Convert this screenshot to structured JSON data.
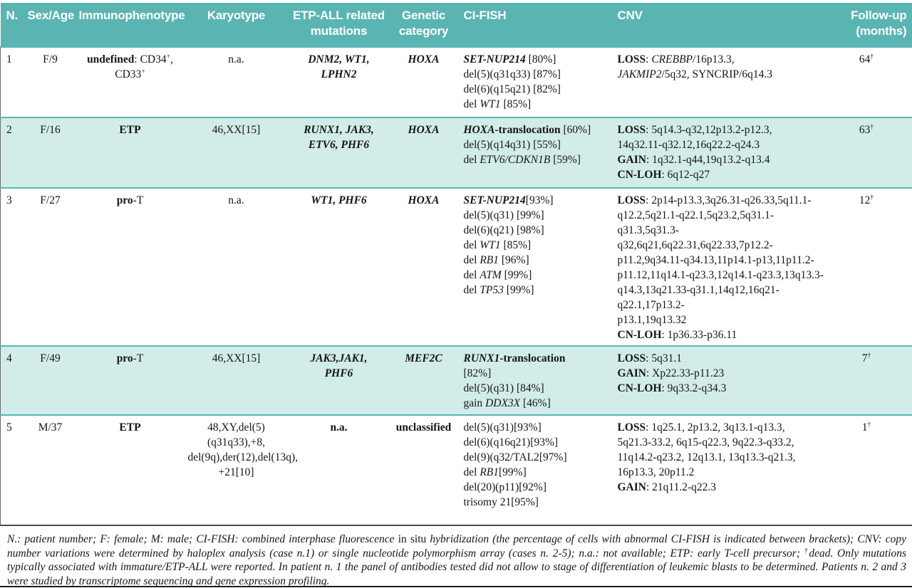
{
  "colors": {
    "header_bg": "#5ab5b2",
    "row_alt_bg": "#d2ecea",
    "rule_dark": "#4a4a4a",
    "text": "#151515"
  },
  "table": {
    "columns": [
      {
        "label": "N."
      },
      {
        "label": "Sex/Age"
      },
      {
        "label": "Immunophenotype"
      },
      {
        "label": "Karyotype"
      },
      {
        "label": "ETP-ALL related mutations"
      },
      {
        "label": "Genetic category"
      },
      {
        "label": "CI-FISH"
      },
      {
        "label": "CNV"
      },
      {
        "label": "Follow-up (months)"
      }
    ],
    "rows": [
      {
        "cells": [
          [
            [
              {
                "t": "1"
              }
            ]
          ],
          [
            [
              {
                "t": "F/9"
              }
            ]
          ],
          [
            [
              {
                "t": "undefined",
                "s": "b"
              },
              {
                "t": ": CD34"
              },
              {
                "t": "+",
                "s": "p"
              },
              {
                "t": ","
              }
            ],
            [
              {
                "t": "CD33"
              },
              {
                "t": "+",
                "s": "p"
              }
            ]
          ],
          [
            [
              {
                "t": "n.a."
              }
            ]
          ],
          [
            [
              {
                "t": "DNM2, WT1,",
                "s": "bi"
              }
            ],
            [
              {
                "t": "LPHN2",
                "s": "bi"
              }
            ]
          ],
          [
            [
              {
                "t": "HOXA",
                "s": "bi"
              }
            ]
          ],
          [
            [
              {
                "t": "SET-NUP214",
                "s": "bi"
              },
              {
                "t": " [80%]"
              }
            ],
            [
              {
                "t": "del(5)(q31q33) [87%]"
              }
            ],
            [
              {
                "t": "del(6)(q15q21) [82%]"
              }
            ],
            [
              {
                "t": "del "
              },
              {
                "t": "WT1",
                "s": "i"
              },
              {
                "t": " [85%]"
              }
            ]
          ],
          [
            [
              {
                "t": "LOSS",
                "s": "b"
              },
              {
                "t": ": "
              },
              {
                "t": "CREBBP",
                "s": "i"
              },
              {
                "t": "/16p13.3,"
              }
            ],
            [
              {
                "t": "JAKMIP2",
                "s": "i"
              },
              {
                "t": "/5q32, SYNCRIP/6q14.3"
              }
            ]
          ],
          [
            [
              {
                "t": "64"
              },
              {
                "t": "†",
                "s": "p"
              }
            ]
          ]
        ]
      },
      {
        "cells": [
          [
            [
              {
                "t": "2"
              }
            ]
          ],
          [
            [
              {
                "t": "F/16"
              }
            ]
          ],
          [
            [
              {
                "t": "ETP",
                "s": "b"
              }
            ]
          ],
          [
            [
              {
                "t": "46,XX[15]"
              }
            ]
          ],
          [
            [
              {
                "t": "RUNX1, JAK3,",
                "s": "bi"
              }
            ],
            [
              {
                "t": "ETV6, PHF6",
                "s": "bi"
              }
            ]
          ],
          [
            [
              {
                "t": "HOXA",
                "s": "bi"
              }
            ]
          ],
          [
            [
              {
                "t": "HOXA",
                "s": "bi"
              },
              {
                "t": "-translocation",
                "s": "b"
              },
              {
                "t": " [60%]"
              }
            ],
            [
              {
                "t": "del(5)(q14q31) [55%]"
              }
            ],
            [
              {
                "t": "del "
              },
              {
                "t": "ETV6/CDKN1B",
                "s": "i"
              },
              {
                "t": " [59%]"
              }
            ]
          ],
          [
            [
              {
                "t": "LOSS",
                "s": "b"
              },
              {
                "t": ": 5q14.3-q32,12p13.2-p12.3,"
              }
            ],
            [
              {
                "t": "14q32.11-q32.12,16q22.2-q24.3"
              }
            ],
            [
              {
                "t": "GAIN",
                "s": "b"
              },
              {
                "t": ": 1q32.1-q44,19q13.2-q13.4"
              }
            ],
            [
              {
                "t": "CN-LOH",
                "s": "b"
              },
              {
                "t": ": 6q12-q27"
              }
            ]
          ],
          [
            [
              {
                "t": "63"
              },
              {
                "t": "†",
                "s": "p"
              }
            ]
          ]
        ]
      },
      {
        "cells": [
          [
            [
              {
                "t": "3"
              }
            ]
          ],
          [
            [
              {
                "t": "F/27"
              }
            ]
          ],
          [
            [
              {
                "t": "pro",
                "s": "b"
              },
              {
                "t": "-T"
              }
            ]
          ],
          [
            [
              {
                "t": "n.a."
              }
            ]
          ],
          [
            [
              {
                "t": "WT1, PHF6",
                "s": "bi"
              }
            ]
          ],
          [
            [
              {
                "t": "HOXA",
                "s": "bi"
              }
            ]
          ],
          [
            [
              {
                "t": "SET-NUP214",
                "s": "bi"
              },
              {
                "t": "[93%]"
              }
            ],
            [
              {
                "t": "del(5)(q31) [99%]"
              }
            ],
            [
              {
                "t": "del(6)(q21) [98%]"
              }
            ],
            [
              {
                "t": "del "
              },
              {
                "t": "WT1",
                "s": "i"
              },
              {
                "t": " [85%]"
              }
            ],
            [
              {
                "t": "del "
              },
              {
                "t": "RB1",
                "s": "i"
              },
              {
                "t": " [96%]"
              }
            ],
            [
              {
                "t": "del "
              },
              {
                "t": "ATM",
                "s": "i"
              },
              {
                "t": " [99%]"
              }
            ],
            [
              {
                "t": "del "
              },
              {
                "t": "TP53",
                "s": "i"
              },
              {
                "t": " [99%]"
              }
            ]
          ],
          [
            [
              {
                "t": "LOSS",
                "s": "b"
              },
              {
                "t": ": 2p14-p13.3,3q26.31-q26.33,5q11.1-"
              }
            ],
            [
              {
                "t": "q12.2,5q21.1-q22.1,5q23.2,5q31.1-"
              }
            ],
            [
              {
                "t": "q31.3,5q31.3-q32,6q21,6q22.31,6q22.33,7p12.2-"
              }
            ],
            [
              {
                "t": "p11.2,9q34.11-q34.13,11p14.1-p13,11p11.2-"
              }
            ],
            [
              {
                "t": "p11.12,11q14.1-q23.3,12q14.1-q23.3,13q13.3-"
              }
            ],
            [
              {
                "t": "q14.3,13q21.33-q31.1,14q12,16q21-q22.1,17p13.2-"
              }
            ],
            [
              {
                "t": "p13.1,19q13.32"
              }
            ],
            [
              {
                "t": "CN-LOH",
                "s": "b"
              },
              {
                "t": ": 1p36.33-p36.11"
              }
            ]
          ],
          [
            [
              {
                "t": "12"
              },
              {
                "t": "†",
                "s": "p"
              }
            ]
          ]
        ]
      },
      {
        "cells": [
          [
            [
              {
                "t": "4"
              }
            ]
          ],
          [
            [
              {
                "t": "F/49"
              }
            ]
          ],
          [
            [
              {
                "t": "pro",
                "s": "b"
              },
              {
                "t": "-T"
              }
            ]
          ],
          [
            [
              {
                "t": "46,XX[15]"
              }
            ]
          ],
          [
            [
              {
                "t": "JAK3,JAK1,",
                "s": "bi"
              }
            ],
            [
              {
                "t": "PHF6",
                "s": "bi"
              }
            ]
          ],
          [
            [
              {
                "t": "MEF2C",
                "s": "bi"
              }
            ]
          ],
          [
            [
              {
                "t": "RUNX1",
                "s": "bi"
              },
              {
                "t": "-translocation",
                "s": "b"
              }
            ],
            [
              {
                "t": "[82%]"
              }
            ],
            [
              {
                "t": "del(5)(q31) [84%]"
              }
            ],
            [
              {
                "t": "gain "
              },
              {
                "t": "DDX3X",
                "s": "i"
              },
              {
                "t": " [46%]"
              }
            ]
          ],
          [
            [
              {
                "t": "LOSS",
                "s": "b"
              },
              {
                "t": ": 5q31.1"
              }
            ],
            [
              {
                "t": "GAIN",
                "s": "b"
              },
              {
                "t": ": Xp22.33-p11.23"
              }
            ],
            [
              {
                "t": "CN-LOH",
                "s": "b"
              },
              {
                "t": ": 9q33.2-q34.3"
              }
            ]
          ],
          [
            [
              {
                "t": "7"
              },
              {
                "t": "†",
                "s": "p"
              }
            ]
          ]
        ]
      },
      {
        "cells": [
          [
            [
              {
                "t": "5"
              }
            ]
          ],
          [
            [
              {
                "t": "M/37"
              }
            ]
          ],
          [
            [
              {
                "t": "ETP",
                "s": "b"
              }
            ]
          ],
          [
            [
              {
                "t": "48,XY,del(5)"
              }
            ],
            [
              {
                "t": "(q31q33),+8,"
              }
            ],
            [
              {
                "t": "del(9q),der(12),del(13q),"
              }
            ],
            [
              {
                "t": "+21[10]"
              }
            ]
          ],
          [
            [
              {
                "t": "n.a.",
                "s": "b"
              }
            ]
          ],
          [
            [
              {
                "t": "unclassified",
                "s": "b"
              }
            ]
          ],
          [
            [
              {
                "t": "del(5)(q31)[93%]"
              }
            ],
            [
              {
                "t": "del(6)(q16q21)[93%]"
              }
            ],
            [
              {
                "t": "del(9)(q32/TAL2[97%]"
              }
            ],
            [
              {
                "t": "del "
              },
              {
                "t": "RB1",
                "s": "i"
              },
              {
                "t": "[99%]"
              }
            ],
            [
              {
                "t": "del(20)(p11)[92%]"
              }
            ],
            [
              {
                "t": "trisomy 21[95%]"
              }
            ]
          ],
          [
            [
              {
                "t": "LOSS",
                "s": "b"
              },
              {
                "t": ": 1q25.1, 2p13.2, 3q13.1-q13.3,"
              }
            ],
            [
              {
                "t": "5q21.3-33.2, 6q15-q22.3, 9q22.3-q33.2,"
              }
            ],
            [
              {
                "t": "11q14.2-q23.2, 12q13.1, 13q13.3-q21.3,"
              }
            ],
            [
              {
                "t": "16p13.3, 20p11.2"
              }
            ],
            [
              {
                "t": "GAIN",
                "s": "b"
              },
              {
                "t": ": 21q11.2-q22.3"
              }
            ]
          ],
          [
            [
              {
                "t": "1"
              },
              {
                "t": "†",
                "s": "p"
              }
            ]
          ]
        ]
      }
    ]
  },
  "footnote": {
    "lines": [
      [
        {
          "t": "N.: patient number; F: female; M: male; CI-FISH: combined interphase fluorescence ",
          "s": "i"
        },
        {
          "t": "in situ "
        },
        {
          "t": "hybridization (the percentage of cells with abnormal CI-FISH is indicated between brackets); CNV: copy number variations were determined by haloplex analysis (case n.1) or single nucleotide polymorphism array (cases n. 2-5); n.a.: not available; ETP: early T-cell precursor; ",
          "s": "i"
        },
        {
          "t": "†",
          "s": "ip"
        },
        {
          "t": "dead. Only mutations typically associated with immature/ETP-ALL were reported. In patient n. 1 the panel of antibodies tested did not allow to stage of differentiation of leukemic blasts to be determined. Patients n. 2 and 3 were studied by transcriptome sequencing and gene expression profiling.",
          "s": "i"
        }
      ]
    ]
  }
}
